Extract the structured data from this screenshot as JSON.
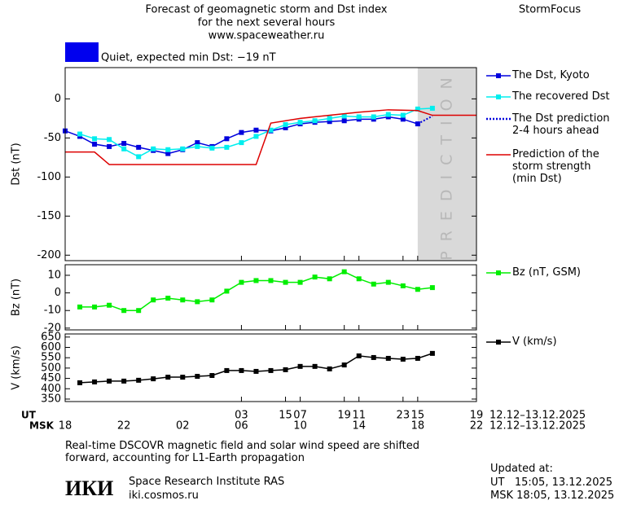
{
  "header": {
    "title": [
      "Forecast of geomagnetic storm and Dst index",
      "for the next several hours",
      "www.spaceweather.ru"
    ],
    "brand": "StormFocus"
  },
  "chart_data": [
    {
      "type": "line",
      "ylabel": "Dst (nT)",
      "xlim": [
        0,
        28
      ],
      "ylim": [
        -207,
        40
      ],
      "yticks": [
        0,
        -50,
        -100,
        -150,
        -200
      ],
      "status": {
        "text": "Quiet, expected min Dst: −19 nT",
        "color": "#0000ee"
      },
      "shade": [
        24,
        28
      ],
      "shade_label": "PREDICTION",
      "series": [
        {
          "name": "The Dst, Kyoto",
          "color": "#0000dd",
          "marker": "square",
          "x": [
            0,
            1,
            2,
            3,
            4,
            5,
            6,
            7,
            8,
            9,
            10,
            11,
            12,
            13,
            14,
            15,
            16,
            17,
            18,
            19,
            20,
            21,
            22,
            23,
            24
          ],
          "values": [
            -41,
            -48,
            -58,
            -61,
            -57,
            -62,
            -66,
            -70,
            -65,
            -56,
            -61,
            -51,
            -43,
            -40,
            -41,
            -37,
            -32,
            -30,
            -29,
            -28,
            -26,
            -26,
            -23,
            -26,
            -32
          ]
        },
        {
          "name": "The recovered Dst",
          "color": "#00eeee",
          "marker": "square",
          "x": [
            1,
            2,
            3,
            4,
            5,
            6,
            7,
            8,
            9,
            10,
            11,
            12,
            13,
            14,
            15,
            16,
            17,
            18,
            19,
            20,
            21,
            22,
            23,
            24,
            25
          ],
          "values": [
            -45,
            -51,
            -52,
            -64,
            -74,
            -64,
            -65,
            -64,
            -61,
            -63,
            -62,
            -56,
            -48,
            -40,
            -33,
            -30,
            -28,
            -25,
            -22,
            -23,
            -23,
            -20,
            -21,
            -13,
            -12
          ]
        },
        {
          "name": "The Dst prediction\n2-4 hours ahead",
          "color": "#0000dd",
          "marker": "none",
          "dash": true,
          "x": [
            24,
            25
          ],
          "values": [
            -32,
            -22
          ]
        },
        {
          "name": "Prediction of the\nstorm strength\n(min Dst)",
          "color": "#dd0000",
          "marker": "none",
          "x": [
            0,
            2,
            3,
            13,
            14,
            16,
            18,
            20,
            22,
            24,
            25,
            28
          ],
          "values": [
            -68,
            -68,
            -84,
            -84,
            -31,
            -25,
            -21,
            -17,
            -14,
            -15,
            -21,
            -21
          ]
        }
      ]
    },
    {
      "type": "line",
      "ylabel": "Bz (nT)",
      "xlim": [
        0,
        28
      ],
      "ylim": [
        -21,
        16
      ],
      "yticks": [
        10,
        0,
        -10,
        -20
      ],
      "series": [
        {
          "name": "Bz (nT, GSM)",
          "color": "#00ee00",
          "marker": "square",
          "x": [
            1,
            2,
            3,
            4,
            5,
            6,
            7,
            8,
            9,
            10,
            11,
            12,
            13,
            14,
            15,
            16,
            17,
            18,
            19,
            20,
            21,
            22,
            23,
            24,
            25
          ],
          "values": [
            -8,
            -8,
            -7,
            -10,
            -10,
            -4,
            -3,
            -4,
            -5,
            -4,
            1,
            6,
            7,
            7,
            6,
            6,
            9,
            8,
            12,
            8,
            5,
            6,
            4,
            2,
            3
          ]
        }
      ]
    },
    {
      "type": "line",
      "ylabel": "V (km/s)",
      "xlim": [
        0,
        28
      ],
      "ylim": [
        338,
        665
      ],
      "yticks": [
        350,
        400,
        450,
        500,
        550,
        600,
        650
      ],
      "x_label": "UT",
      "x2_label": "MSK",
      "x_range_label": "12.12–13.12.2025",
      "x2_range_label": "12.12–13.12.2025",
      "xticks": [
        15,
        19,
        23,
        {
          "value": 12,
          "label": "03"
        },
        {
          "value": 16,
          "label": "07"
        },
        {
          "value": 20,
          "label": "11"
        },
        {
          "value": 24,
          "label": "15"
        },
        {
          "value": 28,
          "label": "19"
        }
      ],
      "x2ticks": [
        {
          "value": 0,
          "label": "18"
        },
        {
          "value": 4,
          "label": "22"
        },
        {
          "value": 8,
          "label": "02"
        },
        {
          "value": 12,
          "label": "06"
        },
        {
          "value": 16,
          "label": "10"
        },
        {
          "value": 20,
          "label": "14"
        },
        {
          "value": 24,
          "label": "18"
        },
        {
          "value": 28,
          "label": "22"
        }
      ],
      "series": [
        {
          "name": "V (km/s)",
          "color": "#000000",
          "marker": "square",
          "x": [
            1,
            2,
            3,
            4,
            5,
            6,
            7,
            8,
            9,
            10,
            11,
            12,
            13,
            14,
            15,
            16,
            17,
            18,
            19,
            20,
            21,
            22,
            23,
            24,
            25
          ],
          "values": [
            429,
            433,
            437,
            437,
            441,
            448,
            456,
            456,
            460,
            464,
            488,
            488,
            484,
            488,
            492,
            508,
            508,
            496,
            515,
            559,
            551,
            547,
            543,
            547,
            571
          ]
        }
      ]
    }
  ],
  "footer": {
    "note": "Real-time DSCOVR magnetic field and solar wind speed are shifted\nforward, accounting for L1-Earth propagation",
    "logo": "ИКИ",
    "institute": "Space Research Institute RAS",
    "url": "iki.cosmos.ru",
    "updated": [
      "Updated at:",
      "UT   15:05, 13.12.2025",
      "MSK 18:05, 13.12.2025"
    ]
  }
}
